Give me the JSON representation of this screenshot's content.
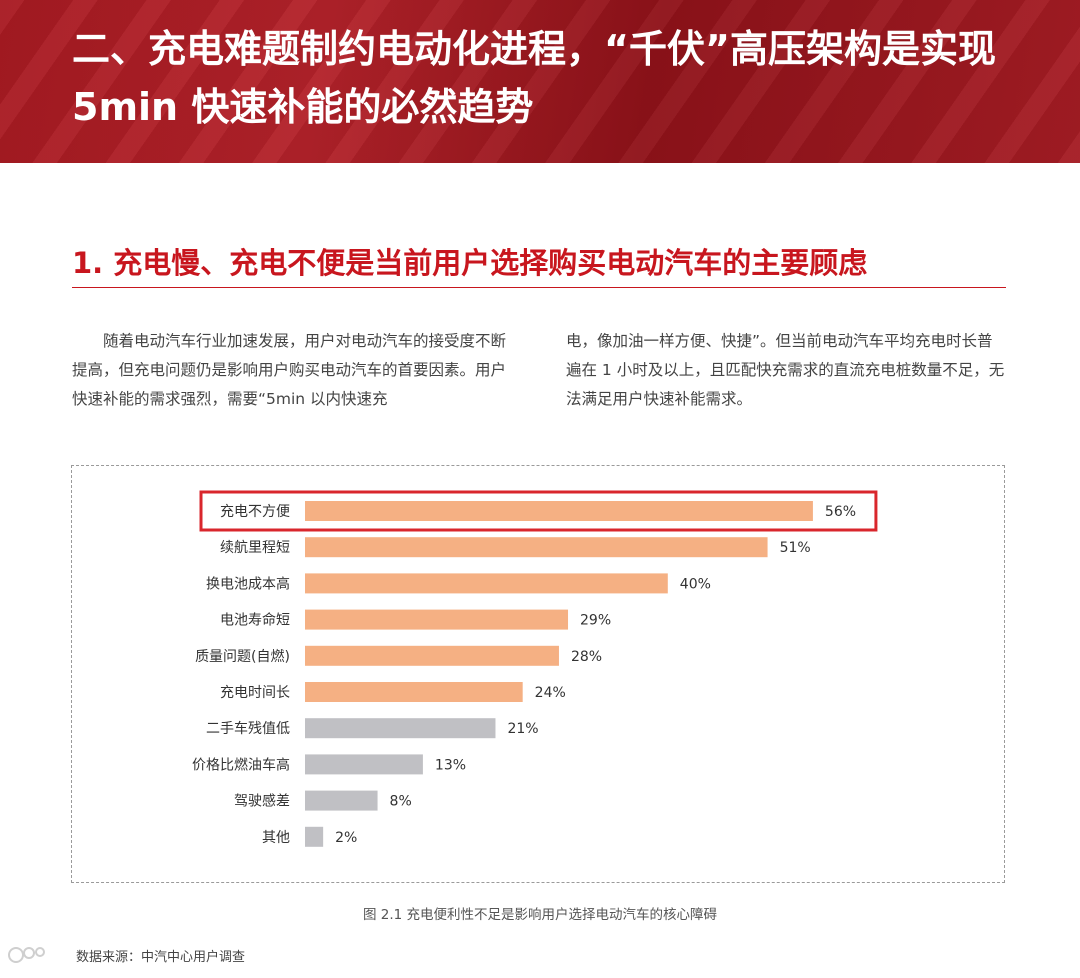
{
  "header": {
    "title": "二、充电难题制约电动化进程，“千伏”高压架构是实现 5min 快速补能的必然趋势"
  },
  "section": {
    "title": "1. 充电慢、充电不便是当前用户选择购买电动汽车的主要顾虑"
  },
  "body": {
    "left": "随着电动汽车行业加速发展，用户对电动汽车的接受度不断提高，但充电问题仍是影响用户购买电动汽车的首要因素。用户快速补能的需求强烈，需要“5min 以内快速充",
    "right": "电，像加油一样方便、快捷”。但当前电动汽车平均充电时长普遍在 1 小时及以上，且匹配快充需求的直流充电桩数量不足，无法满足用户快速补能需求。"
  },
  "chart_data": {
    "type": "bar",
    "orientation": "horizontal",
    "categories": [
      "充电不方便",
      "续航里程短",
      "换电池成本高",
      "电池寿命短",
      "质量问题(自燃)",
      "充电时间长",
      "二手车残值低",
      "价格比燃油车高",
      "驾驶感差",
      "其他"
    ],
    "values": [
      56,
      51,
      40,
      29,
      28,
      24,
      21,
      13,
      8,
      2
    ],
    "value_labels": [
      "56%",
      "51%",
      "40%",
      "29%",
      "28%",
      "24%",
      "21%",
      "13%",
      "8%",
      "2%"
    ],
    "unit": "%",
    "xlim": [
      0,
      60
    ],
    "grid": false,
    "highlight_category": "充电不方便",
    "highlight_color": "#d9262c",
    "colors": {
      "orange": "#f5b083",
      "gray": "#c0c0c4"
    },
    "orange_count": 6
  },
  "caption": "图 2.1 充电便利性不足是影响用户选择电动汽车的核心障碍",
  "source": "数据来源：中汽中心用户调查"
}
